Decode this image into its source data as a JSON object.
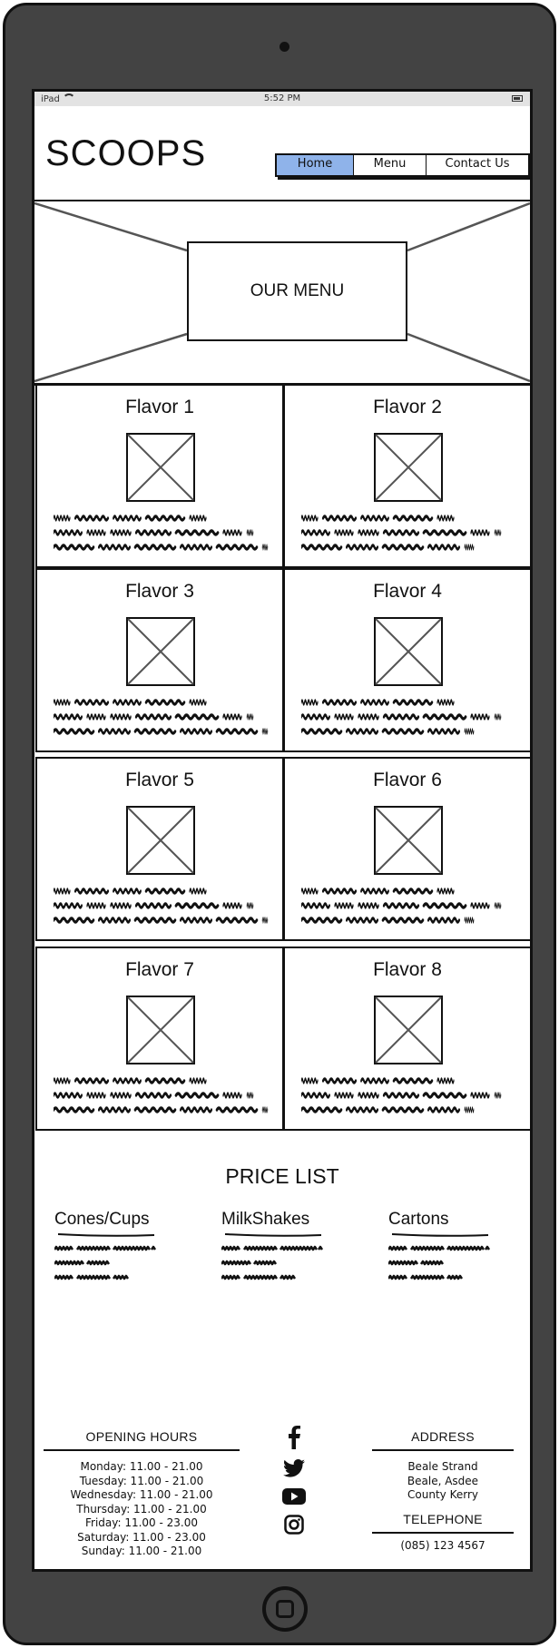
{
  "status_bar": {
    "device": "iPad",
    "time": "5:52 PM"
  },
  "header": {
    "logo": "SCOOPS"
  },
  "nav": {
    "items": [
      "Home",
      "Menu",
      "Contact Us"
    ],
    "active": "Home",
    "active_color": "#8fb3ea"
  },
  "hero": {
    "title": "OUR MENU"
  },
  "flavors": [
    {
      "name": "Flavor 1"
    },
    {
      "name": "Flavor 2"
    },
    {
      "name": "Flavor 3"
    },
    {
      "name": "Flavor 4"
    },
    {
      "name": "Flavor 5"
    },
    {
      "name": "Flavor 6"
    },
    {
      "name": "Flavor 7"
    },
    {
      "name": "Flavor 8"
    }
  ],
  "price_list": {
    "title": "PRICE LIST",
    "columns": [
      "Cones/Cups",
      "MilkShakes",
      "Cartons"
    ]
  },
  "footer": {
    "hours_title": "OPENING HOURS",
    "hours": [
      "Monday: 11.00 - 21.00",
      "Tuesday: 11.00 - 21.00",
      "Wednesday: 11.00 - 21.00",
      "Thursday: 11.00 - 21.00",
      "Friday: 11.00 - 23.00",
      "Saturday: 11.00 - 23.00",
      "Sunday: 11.00 - 21.00"
    ],
    "social_icons": [
      "facebook-icon",
      "twitter-icon",
      "youtube-icon",
      "instagram-icon"
    ],
    "address_title": "ADDRESS",
    "address_lines": [
      "Beale Strand",
      "Beale, Asdee",
      "County Kerry"
    ],
    "telephone_title": "TELEPHONE",
    "telephone": "(085) 123 4567"
  }
}
